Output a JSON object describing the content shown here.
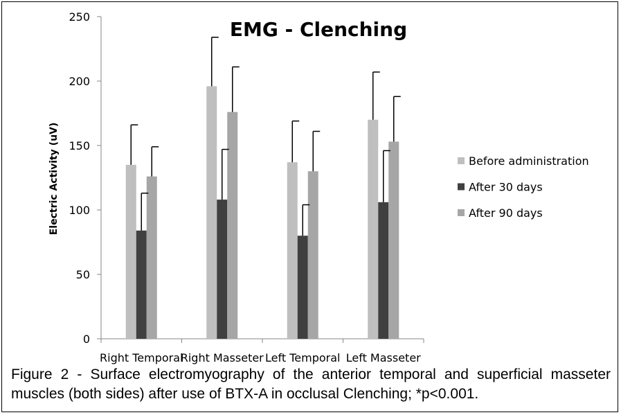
{
  "chart_data": {
    "type": "bar",
    "title": "EMG - Clenching",
    "xlabel": "",
    "ylabel": "Electric Activity (uV)",
    "ylim": [
      0,
      250
    ],
    "yticks": [
      0,
      50,
      100,
      150,
      200,
      250
    ],
    "grid": false,
    "legend_position": "right",
    "error_bars": true,
    "categories": [
      "Right Temporal",
      "Right Masseter",
      "Left Temporal",
      "Left Masseter"
    ],
    "series": [
      {
        "name": "Before administration",
        "color": "#bfbfbf",
        "values": [
          135,
          196,
          137,
          170
        ],
        "error": [
          31,
          38,
          32,
          37
        ]
      },
      {
        "name": "After 30 days",
        "color": "#404040",
        "values": [
          84,
          108,
          80,
          106
        ],
        "error": [
          29,
          39,
          24,
          40
        ]
      },
      {
        "name": "After 90 days",
        "color": "#a6a6a6",
        "values": [
          126,
          176,
          130,
          153
        ],
        "error": [
          23,
          35,
          31,
          35
        ]
      }
    ]
  },
  "caption": "Figure 2 - Surface electromyography of the anterior temporal and superficial masseter muscles (both sides) after use of BTX-A in occlusal Clenching; *p<0.001."
}
